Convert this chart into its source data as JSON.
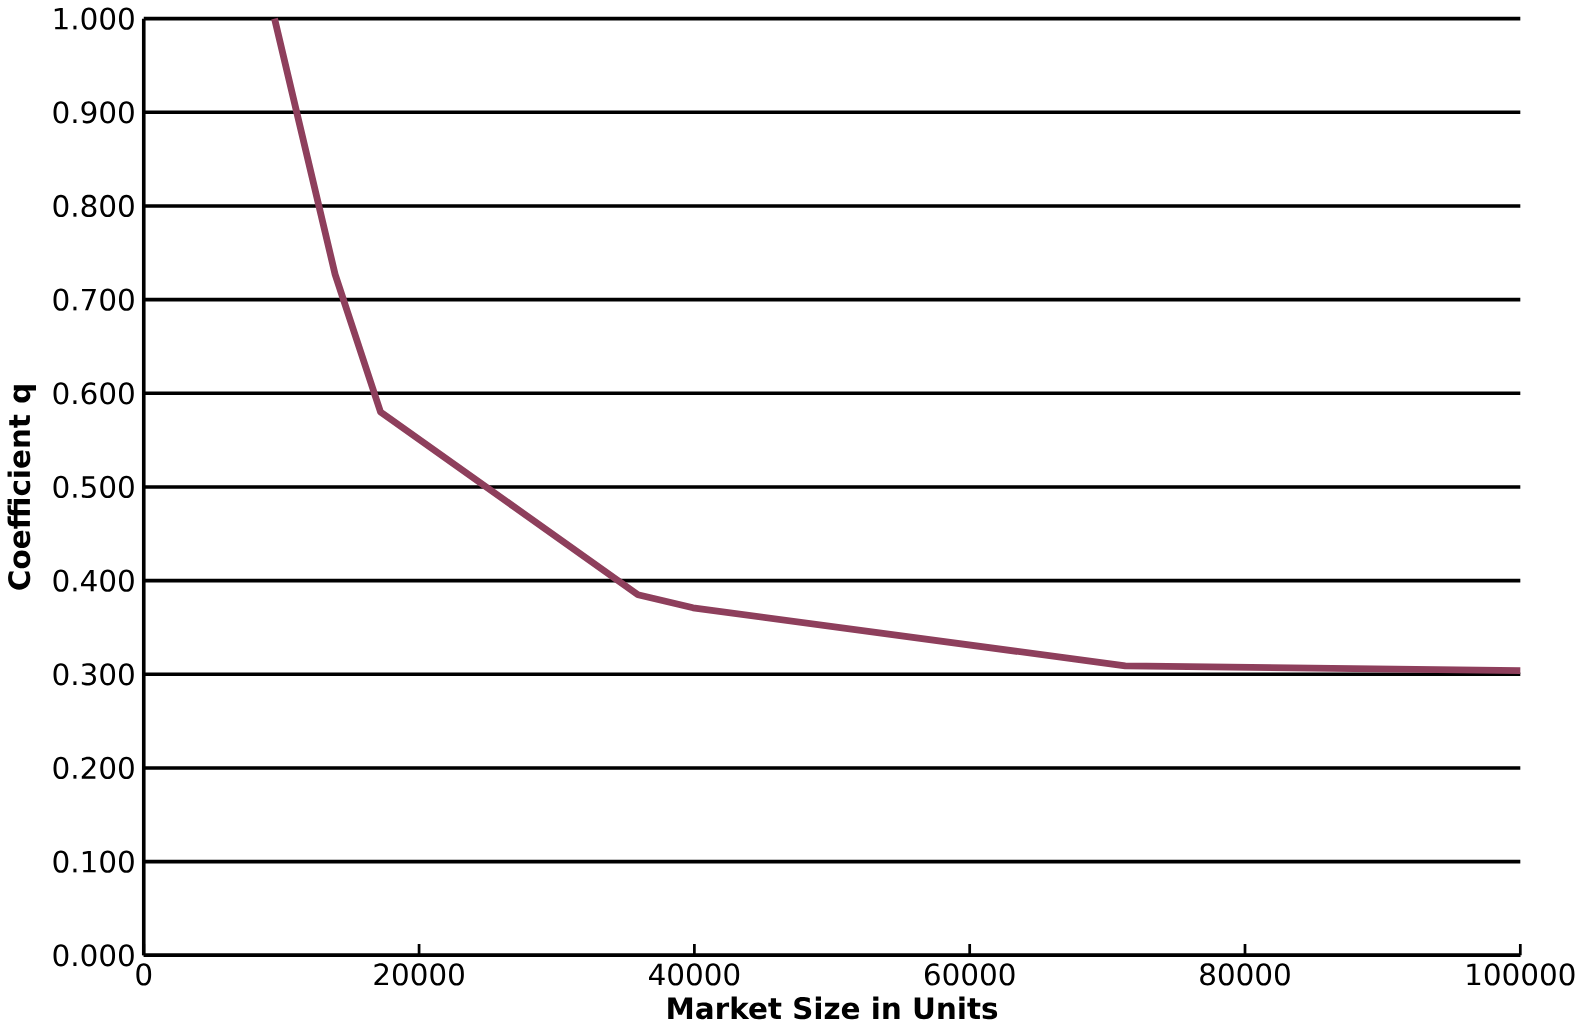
{
  "chart_data": {
    "type": "line",
    "xlabel": "Market Size in Units",
    "ylabel": "Coefficient q",
    "x": [
      9500,
      13900,
      17200,
      35900,
      39900,
      71300,
      100000
    ],
    "series": [
      {
        "color": "#8e3f5c",
        "values": [
          1.0,
          0.727,
          0.58,
          0.385,
          0.371,
          0.309,
          0.304
        ]
      }
    ],
    "xlim": [
      0,
      100000
    ],
    "ylim": [
      0,
      1
    ],
    "xticks": [
      0,
      20000,
      40000,
      60000,
      80000,
      100000
    ],
    "yticks": [
      {
        "value": 0,
        "label": "0.000"
      },
      {
        "value": 0.1,
        "label": "0.100"
      },
      {
        "value": 0.2,
        "label": "0.200"
      },
      {
        "value": 0.3,
        "label": "0.300"
      },
      {
        "value": 0.4,
        "label": "0.400"
      },
      {
        "value": 0.5,
        "label": "0.500"
      },
      {
        "value": 0.6,
        "label": "0.600"
      },
      {
        "value": 0.7,
        "label": "0.700"
      },
      {
        "value": 0.8,
        "label": "0.800"
      },
      {
        "value": 0.9,
        "label": "0.900"
      },
      {
        "value": 1,
        "label": "1.000"
      }
    ],
    "grid": "y",
    "marker": "none",
    "line_style": "solid"
  }
}
